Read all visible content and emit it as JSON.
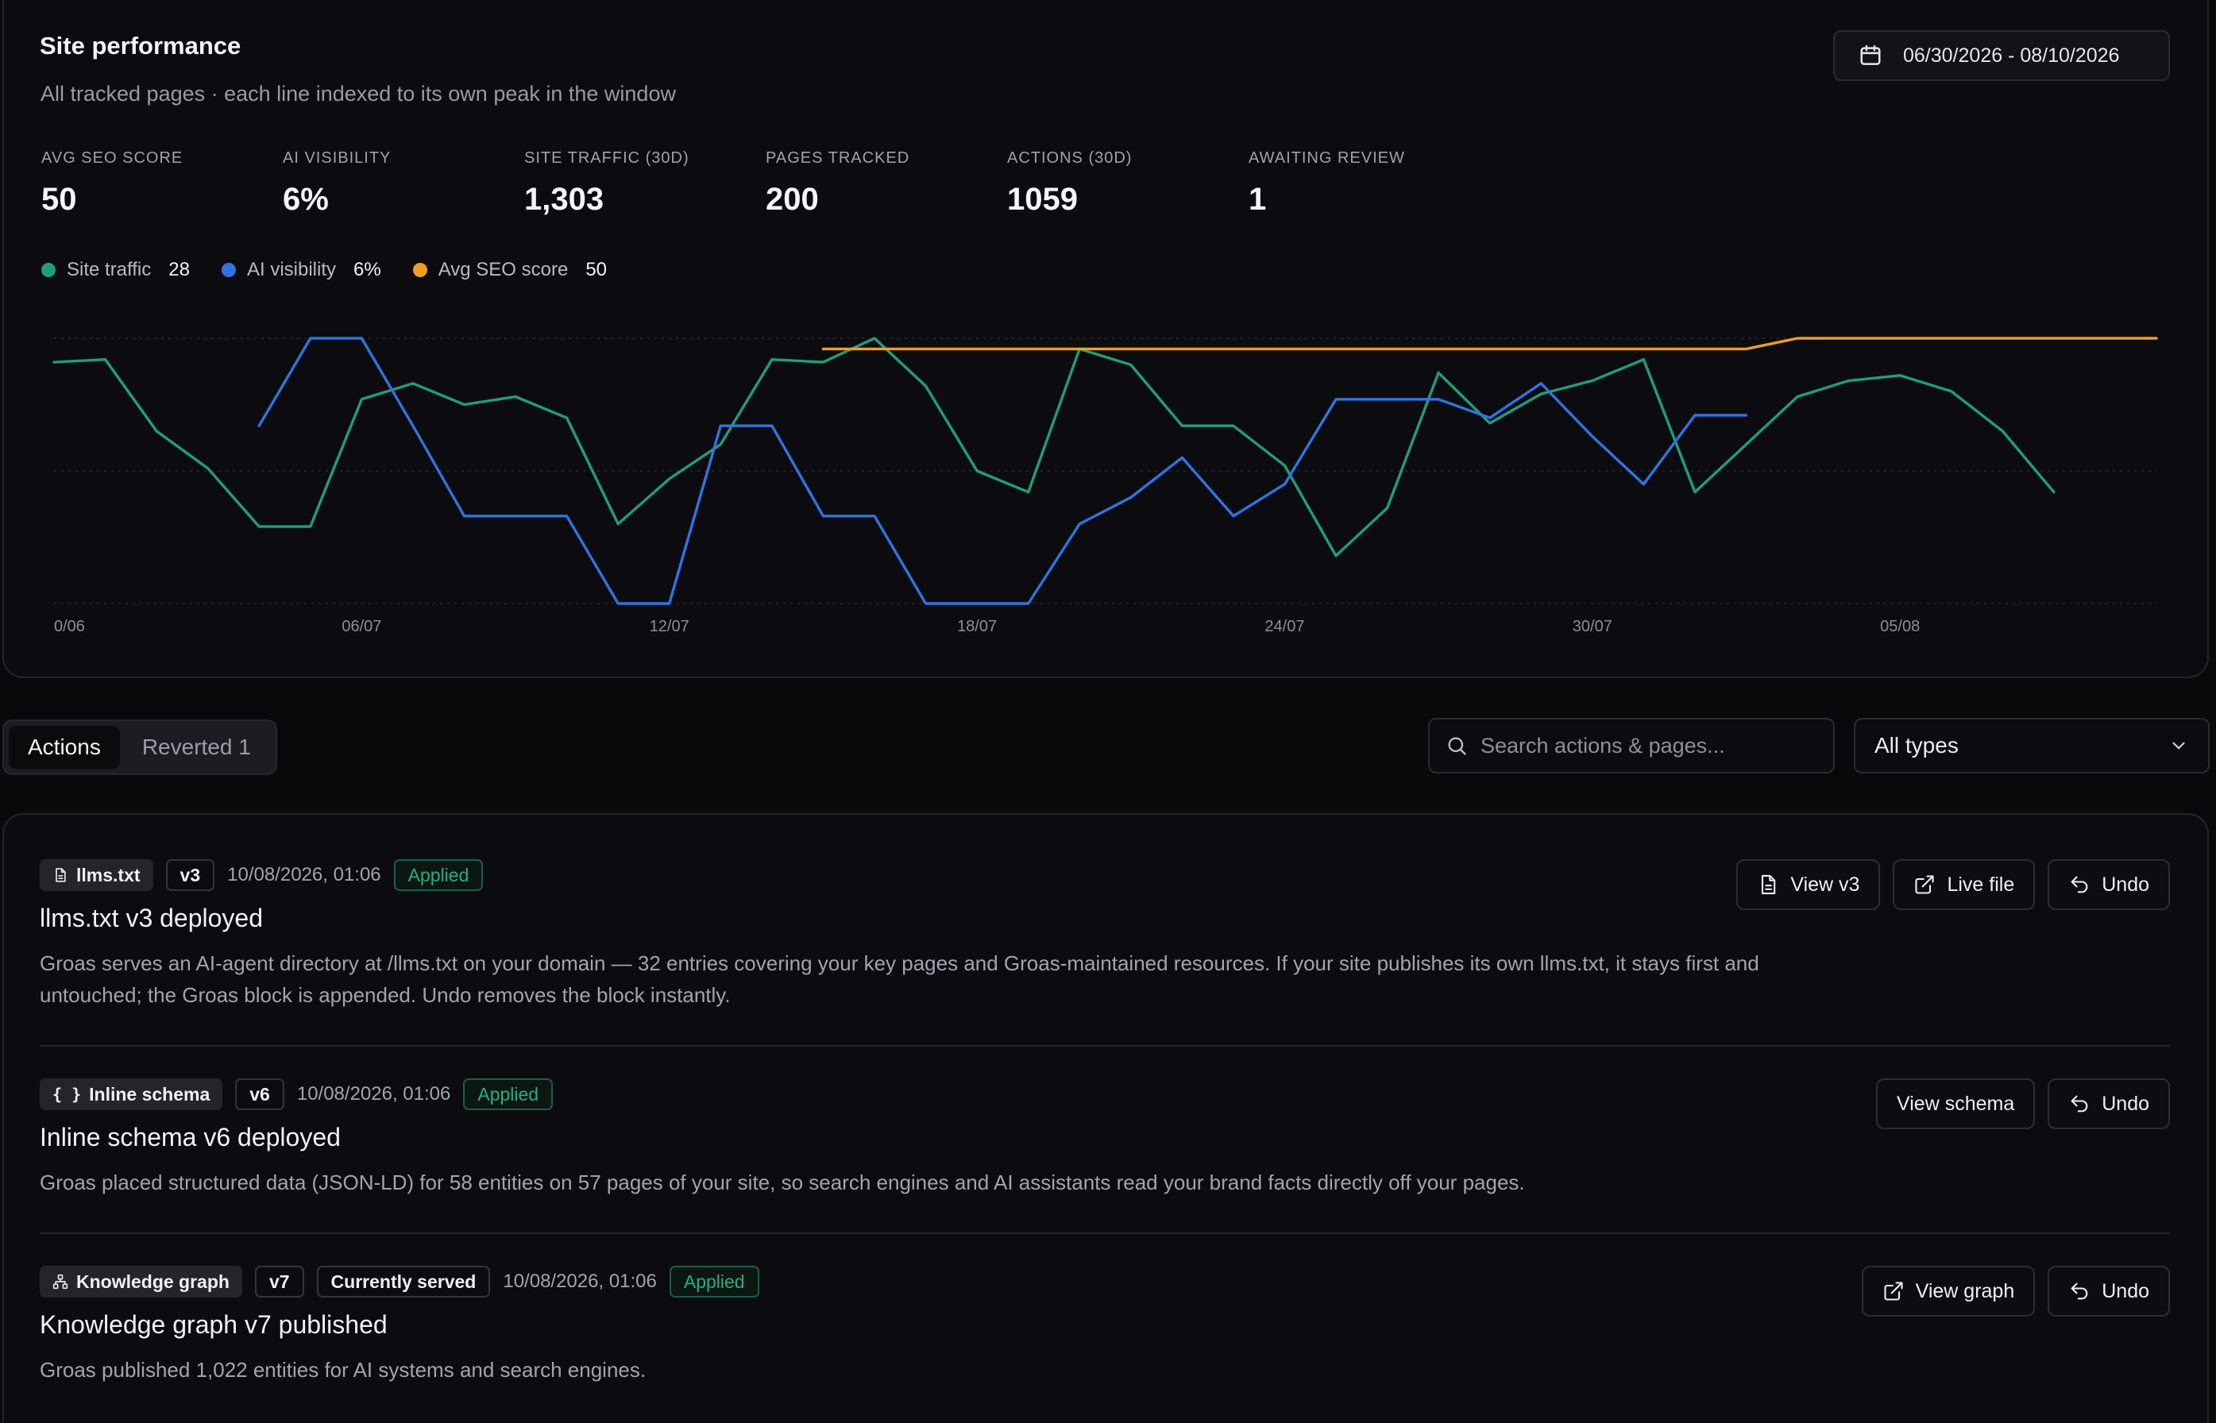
{
  "header": {
    "title": "Site performance",
    "subtitle": "All tracked pages · each line indexed to its own peak in the window",
    "date_range": "06/30/2026 - 08/10/2026"
  },
  "kpis": [
    {
      "label": "AVG SEO SCORE",
      "value": "50"
    },
    {
      "label": "AI VISIBILITY",
      "value": "6%"
    },
    {
      "label": "SITE TRAFFIC (30D)",
      "value": "1,303"
    },
    {
      "label": "PAGES TRACKED",
      "value": "200"
    },
    {
      "label": "ACTIONS (30D)",
      "value": "1059"
    },
    {
      "label": "AWAITING REVIEW",
      "value": "1"
    }
  ],
  "legend": [
    {
      "name": "Site traffic",
      "value": "28",
      "color": "#1f9e7a"
    },
    {
      "name": "AI visibility",
      "value": "6%",
      "color": "#2f74e0"
    },
    {
      "name": "Avg SEO score",
      "value": "50",
      "color": "#f0a01c"
    }
  ],
  "chart_data": {
    "type": "line",
    "title": "",
    "xlabel": "",
    "ylabel": "",
    "x_ticks": [
      "0/06",
      "06/07",
      "12/07",
      "18/07",
      "24/07",
      "30/07",
      "05/08"
    ],
    "ylim": [
      0,
      100
    ],
    "grid": true,
    "x_start_label": "30/06",
    "x_step_days": 1,
    "series": [
      {
        "name": "Site traffic",
        "color": "#1f9e7a",
        "values": [
          91,
          92,
          65,
          51,
          29,
          29,
          77,
          83,
          75,
          78,
          70,
          30,
          47,
          60,
          92,
          91,
          100,
          82,
          50,
          42,
          96,
          90,
          67,
          67,
          52,
          18,
          36,
          87,
          68,
          79,
          84,
          92,
          42,
          60,
          78,
          84,
          86,
          80,
          65,
          42
        ]
      },
      {
        "name": "AI visibility",
        "color": "#2f74e0",
        "values": [
          null,
          null,
          null,
          null,
          67,
          100,
          100,
          67,
          33,
          33,
          33,
          0,
          0,
          67,
          67,
          33,
          33,
          0,
          0,
          0,
          30,
          40,
          55,
          33,
          45,
          77,
          77,
          77,
          70,
          83,
          63,
          45,
          71,
          71
        ]
      },
      {
        "name": "Avg SEO score",
        "color": "#f0a01c",
        "values": [
          null,
          null,
          null,
          null,
          null,
          null,
          null,
          null,
          null,
          null,
          null,
          null,
          null,
          null,
          null,
          96,
          96,
          96,
          96,
          96,
          96,
          96,
          96,
          96,
          96,
          96,
          96,
          96,
          96,
          96,
          96,
          96,
          96,
          96,
          100,
          100,
          100,
          100,
          100,
          100,
          100,
          100
        ]
      }
    ]
  },
  "tabs": [
    {
      "label": "Actions",
      "active": true
    },
    {
      "label": "Reverted 1",
      "active": false
    }
  ],
  "search": {
    "placeholder": "Search actions & pages..."
  },
  "filter": {
    "selected": "All types"
  },
  "actions": [
    {
      "type": "llms.txt",
      "type_icon": "file-icon",
      "version": "v3",
      "extra_badge": null,
      "timestamp": "10/08/2026, 01:06",
      "status": "Applied",
      "title": "llms.txt v3 deployed",
      "description": "Groas serves an AI-agent directory at /llms.txt on your domain — 32 entries covering your key pages and Groas-maintained resources. If your site publishes its own llms.txt, it stays first and untouched; the Groas block is appended. Undo removes the block instantly.",
      "buttons": [
        {
          "label": "View v3",
          "icon": "file-icon"
        },
        {
          "label": "Live file",
          "icon": "external-link-icon"
        },
        {
          "label": "Undo",
          "icon": "undo-icon"
        }
      ]
    },
    {
      "type": "Inline schema",
      "type_icon": "braces-icon",
      "version": "v6",
      "extra_badge": null,
      "timestamp": "10/08/2026, 01:06",
      "status": "Applied",
      "title": "Inline schema v6 deployed",
      "description": "Groas placed structured data (JSON-LD) for 58 entities on 57 pages of your site, so search engines and AI assistants read your brand facts directly off your pages.",
      "buttons": [
        {
          "label": "View schema",
          "icon": null
        },
        {
          "label": "Undo",
          "icon": "undo-icon"
        }
      ]
    },
    {
      "type": "Knowledge graph",
      "type_icon": "network-icon",
      "version": "v7",
      "extra_badge": "Currently served",
      "timestamp": "10/08/2026, 01:06",
      "status": "Applied",
      "title": "Knowledge graph v7 published",
      "description": "Groas published 1,022 entities for AI systems and search engines.",
      "buttons": [
        {
          "label": "View graph",
          "icon": "external-link-icon"
        },
        {
          "label": "Undo",
          "icon": "undo-icon"
        }
      ]
    }
  ]
}
